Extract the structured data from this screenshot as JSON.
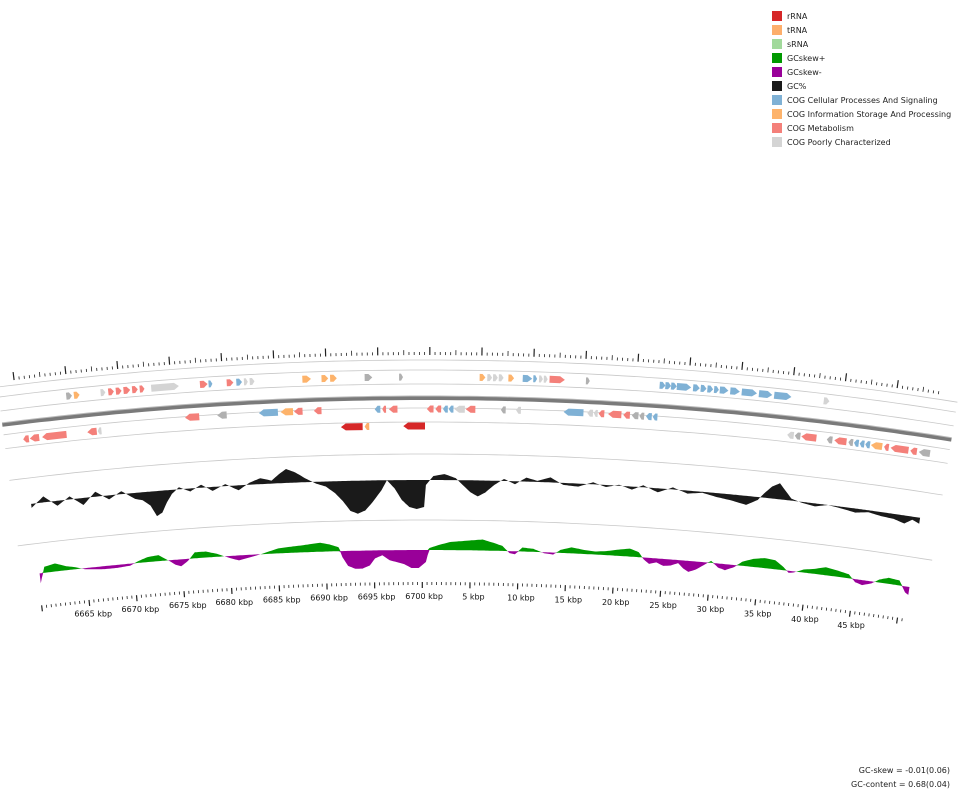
{
  "legend": [
    {
      "label": "rRNA",
      "color": "#d62728"
    },
    {
      "label": "tRNA",
      "color": "#fdae6b"
    },
    {
      "label": "sRNA",
      "color": "#a1d99b"
    },
    {
      "label": "GCskew+",
      "color": "#009900"
    },
    {
      "label": "GCskew-",
      "color": "#990099"
    },
    {
      "label": "GC%",
      "color": "#1a1a1a"
    },
    {
      "label": "COG Cellular Processes And Signaling",
      "color": "#7fb1d5"
    },
    {
      "label": "COG Information Storage And Processing",
      "color": "#fdb36b"
    },
    {
      "label": "COG Metabolism",
      "color": "#f4807a"
    },
    {
      "label": "COG Poorly Characterized",
      "color": "#d4d4d4"
    }
  ],
  "ruler": {
    "ticks": [
      "6665 kbp",
      "6670 kbp",
      "6675 kbp",
      "6680 kbp",
      "6685 kbp",
      "6690 kbp",
      "6695 kbp",
      "6700 kbp",
      "5 kbp",
      "10 kbp",
      "15 kbp",
      "20 kbp",
      "25 kbp",
      "30 kbp",
      "35 kbp",
      "40 kbp",
      "45 kbp"
    ]
  },
  "stats": {
    "gc_skew": "GC-skew = -0.01(0.06)",
    "gc_content": "GC-content = 0.68(0.04)"
  },
  "tracks": {
    "gc_content_color": "#1a1a1a",
    "gc_skew_pos_color": "#009900",
    "gc_skew_neg_color": "#990099",
    "backbone_color": "#7a7a7a"
  },
  "features": {
    "forward": [
      [
        "gray",
        50,
        56
      ],
      [
        "orange",
        58,
        64
      ],
      [
        "lgray",
        86,
        91
      ],
      [
        "salmon",
        94,
        100
      ],
      [
        "salmon",
        102,
        108
      ],
      [
        "salmon",
        110,
        117
      ],
      [
        "salmon",
        119,
        125
      ],
      [
        "salmon",
        127,
        132
      ],
      [
        "lgray",
        139,
        168
      ],
      [
        "salmon",
        190,
        198
      ],
      [
        "blue",
        199,
        203
      ],
      [
        "salmon",
        218,
        225
      ],
      [
        "blue",
        228,
        234
      ],
      [
        "lgray",
        236,
        240
      ],
      [
        "lgray",
        242,
        247
      ],
      [
        "orange",
        297,
        306
      ],
      [
        "orange",
        317,
        324
      ],
      [
        "orange",
        326,
        333
      ],
      [
        "gray",
        362,
        370
      ],
      [
        "gray",
        398,
        402
      ],
      [
        "orange",
        482,
        488
      ],
      [
        "lgray",
        490,
        495
      ],
      [
        "lgray",
        496,
        501
      ],
      [
        "lgray",
        502,
        507
      ],
      [
        "orange",
        512,
        518
      ],
      [
        "blue",
        527,
        537
      ],
      [
        "blue",
        538,
        542
      ],
      [
        "lgray",
        544,
        548
      ],
      [
        "lgray",
        549,
        553
      ],
      [
        "salmon",
        555,
        571
      ],
      [
        "gray",
        593,
        597
      ],
      [
        "blue",
        670,
        676
      ],
      [
        "blue",
        676,
        682
      ],
      [
        "blue",
        682,
        688
      ],
      [
        "blue",
        688,
        703
      ],
      [
        "blue",
        705,
        712
      ],
      [
        "blue",
        713,
        719
      ],
      [
        "blue",
        720,
        726
      ],
      [
        "blue",
        727,
        732
      ],
      [
        "blue",
        733,
        742
      ],
      [
        "blue",
        744,
        754
      ],
      [
        "blue",
        756,
        772
      ],
      [
        "blue",
        774,
        788
      ],
      [
        "blue",
        790,
        808
      ],
      [
        "lgray",
        842,
        848
      ]
    ],
    "reverse": [
      [
        "salmon",
        0,
        6
      ],
      [
        "salmon",
        7,
        17
      ],
      [
        "salmon",
        20,
        46
      ],
      [
        "salmon",
        68,
        78
      ],
      [
        "lgray",
        79,
        83
      ],
      [
        "salmon",
        172,
        187
      ],
      [
        "gray",
        206,
        216
      ],
      [
        "blue",
        250,
        270
      ],
      [
        "orange",
        273,
        286
      ],
      [
        "salmon",
        287,
        296
      ],
      [
        "salmon",
        308,
        316
      ],
      [
        "blue",
        372,
        378
      ],
      [
        "salmon",
        380,
        384
      ],
      [
        "salmon",
        387,
        396
      ],
      [
        "salmon",
        427,
        434
      ],
      [
        "salmon",
        436,
        442
      ],
      [
        "blue",
        444,
        449
      ],
      [
        "blue",
        450,
        455
      ],
      [
        "lgray",
        456,
        467
      ],
      [
        "salmon",
        468,
        478
      ],
      [
        "gray",
        505,
        510
      ],
      [
        "lgray",
        521,
        526
      ],
      [
        "blue",
        571,
        592
      ],
      [
        "lgray",
        596,
        602
      ],
      [
        "lgray",
        603,
        607
      ],
      [
        "salmon",
        608,
        614
      ],
      [
        "salmon",
        618,
        632
      ],
      [
        "salmon",
        634,
        641
      ],
      [
        "gray",
        643,
        650
      ],
      [
        "gray",
        651,
        656
      ],
      [
        "blue",
        658,
        664
      ],
      [
        "blue",
        665,
        670
      ],
      [
        "lgray",
        808,
        815
      ],
      [
        "gray",
        816,
        822
      ],
      [
        "salmon",
        823,
        839
      ],
      [
        "gray",
        850,
        856
      ],
      [
        "salmon",
        858,
        871
      ],
      [
        "gray",
        873,
        878
      ],
      [
        "blue",
        879,
        884
      ],
      [
        "blue",
        885,
        890
      ],
      [
        "blue",
        891,
        896
      ],
      [
        "orange",
        897,
        909
      ],
      [
        "salmon",
        911,
        916
      ],
      [
        "salmon",
        918,
        937
      ],
      [
        "salmon",
        939,
        946
      ],
      [
        "gray",
        948,
        960
      ]
    ],
    "rna": [
      [
        "rRNA",
        336,
        359
      ],
      [
        "tRNA",
        361,
        366
      ],
      [
        "rRNA",
        402,
        425
      ]
    ]
  },
  "gc_content_profile": [
    [
      0,
      -4
    ],
    [
      14,
      6
    ],
    [
      28,
      -5
    ],
    [
      42,
      3
    ],
    [
      56,
      -7
    ],
    [
      70,
      5
    ],
    [
      84,
      -4
    ],
    [
      98,
      3
    ],
    [
      112,
      -6
    ],
    [
      120,
      -8
    ],
    [
      128,
      -14
    ],
    [
      134,
      -25
    ],
    [
      140,
      -22
    ],
    [
      146,
      -12
    ],
    [
      152,
      -4
    ],
    [
      160,
      2
    ],
    [
      172,
      -3
    ],
    [
      184,
      3
    ],
    [
      196,
      -4
    ],
    [
      210,
      2
    ],
    [
      224,
      -5
    ],
    [
      236,
      2
    ],
    [
      248,
      6
    ],
    [
      260,
      3
    ],
    [
      268,
      9
    ],
    [
      276,
      14
    ],
    [
      286,
      10
    ],
    [
      296,
      4
    ],
    [
      308,
      -2
    ],
    [
      318,
      -5
    ],
    [
      328,
      -12
    ],
    [
      336,
      -20
    ],
    [
      344,
      -30
    ],
    [
      352,
      -33
    ],
    [
      360,
      -30
    ],
    [
      368,
      -22
    ],
    [
      378,
      -10
    ],
    [
      384,
      0
    ],
    [
      392,
      -8
    ],
    [
      400,
      -20
    ],
    [
      408,
      -27
    ],
    [
      416,
      -29
    ],
    [
      424,
      -27
    ],
    [
      426,
      -5
    ],
    [
      434,
      4
    ],
    [
      446,
      6
    ],
    [
      458,
      2
    ],
    [
      466,
      -5
    ],
    [
      474,
      -12
    ],
    [
      482,
      -16
    ],
    [
      490,
      -12
    ],
    [
      500,
      -4
    ],
    [
      510,
      2
    ],
    [
      522,
      -3
    ],
    [
      534,
      4
    ],
    [
      546,
      1
    ],
    [
      560,
      5
    ],
    [
      574,
      -2
    ],
    [
      590,
      -3
    ],
    [
      606,
      2
    ],
    [
      620,
      -2
    ],
    [
      634,
      1
    ],
    [
      648,
      -3
    ],
    [
      660,
      2
    ],
    [
      676,
      -4
    ],
    [
      692,
      2
    ],
    [
      708,
      -3
    ],
    [
      724,
      -1
    ],
    [
      740,
      -4
    ],
    [
      756,
      -6
    ],
    [
      772,
      -9
    ],
    [
      784,
      -3
    ],
    [
      790,
      4
    ],
    [
      798,
      12
    ],
    [
      806,
      16
    ],
    [
      814,
      8
    ],
    [
      820,
      2
    ],
    [
      832,
      -1
    ],
    [
      846,
      -3
    ],
    [
      860,
      0
    ],
    [
      876,
      -2
    ],
    [
      890,
      -4
    ],
    [
      904,
      -2
    ],
    [
      918,
      -4
    ],
    [
      932,
      -5
    ],
    [
      944,
      -8
    ],
    [
      952,
      -3
    ],
    [
      960,
      -6
    ]
  ],
  "gc_skew_profile": [
    [
      0,
      -10
    ],
    [
      6,
      6
    ],
    [
      18,
      8
    ],
    [
      30,
      4
    ],
    [
      40,
      2
    ],
    [
      50,
      -1
    ],
    [
      60,
      -2
    ],
    [
      72,
      -3
    ],
    [
      86,
      -3
    ],
    [
      100,
      -2
    ],
    [
      110,
      2
    ],
    [
      120,
      5
    ],
    [
      132,
      6
    ],
    [
      144,
      -1
    ],
    [
      150,
      -5
    ],
    [
      156,
      -7
    ],
    [
      164,
      -2
    ],
    [
      172,
      6
    ],
    [
      184,
      6
    ],
    [
      196,
      3
    ],
    [
      210,
      -2
    ],
    [
      220,
      -5
    ],
    [
      230,
      -3
    ],
    [
      240,
      -1
    ],
    [
      252,
      2
    ],
    [
      264,
      5
    ],
    [
      276,
      6
    ],
    [
      290,
      7
    ],
    [
      300,
      8
    ],
    [
      310,
      9
    ],
    [
      320,
      7
    ],
    [
      330,
      4
    ],
    [
      334,
      -6
    ],
    [
      340,
      -15
    ],
    [
      348,
      -18
    ],
    [
      356,
      -18
    ],
    [
      364,
      -15
    ],
    [
      370,
      -8
    ],
    [
      378,
      -5
    ],
    [
      386,
      -10
    ],
    [
      394,
      -12
    ],
    [
      402,
      -14
    ],
    [
      410,
      -18
    ],
    [
      418,
      -18
    ],
    [
      426,
      -12
    ],
    [
      430,
      2
    ],
    [
      440,
      5
    ],
    [
      452,
      8
    ],
    [
      464,
      9
    ],
    [
      476,
      10
    ],
    [
      488,
      11
    ],
    [
      500,
      8
    ],
    [
      510,
      5
    ],
    [
      518,
      -2
    ],
    [
      524,
      -3
    ],
    [
      532,
      4
    ],
    [
      544,
      3
    ],
    [
      556,
      -1
    ],
    [
      566,
      -2
    ],
    [
      574,
      3
    ],
    [
      586,
      6
    ],
    [
      600,
      4
    ],
    [
      612,
      3
    ],
    [
      624,
      4
    ],
    [
      636,
      6
    ],
    [
      650,
      8
    ],
    [
      660,
      5
    ],
    [
      666,
      -2
    ],
    [
      672,
      -6
    ],
    [
      680,
      -4
    ],
    [
      688,
      -7
    ],
    [
      696,
      -6
    ],
    [
      704,
      -3
    ],
    [
      710,
      -8
    ],
    [
      716,
      -11
    ],
    [
      724,
      -8
    ],
    [
      732,
      -3
    ],
    [
      740,
      2
    ],
    [
      748,
      -4
    ],
    [
      756,
      -6
    ],
    [
      766,
      -2
    ],
    [
      774,
      4
    ],
    [
      786,
      8
    ],
    [
      798,
      10
    ],
    [
      810,
      9
    ],
    [
      820,
      3
    ],
    [
      826,
      -2
    ],
    [
      832,
      -1
    ],
    [
      842,
      3
    ],
    [
      854,
      5
    ],
    [
      866,
      8
    ],
    [
      880,
      6
    ],
    [
      892,
      4
    ],
    [
      900,
      -3
    ],
    [
      908,
      -5
    ],
    [
      918,
      -2
    ],
    [
      926,
      3
    ],
    [
      936,
      6
    ],
    [
      948,
      5
    ],
    [
      956,
      -6
    ],
    [
      960,
      -8
    ]
  ]
}
